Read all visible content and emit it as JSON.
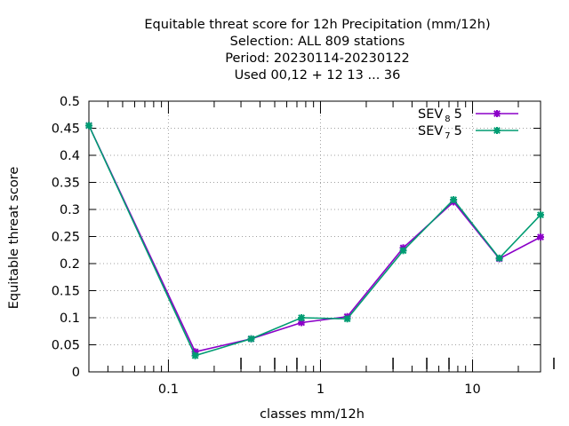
{
  "chart_data": {
    "type": "line",
    "title_lines": [
      "Equitable threat score  for 12h Precipitation (mm/12h)",
      "Selection: ALL    809 stations",
      "Period: 20230114-20230122",
      "Used  00,12  + 12 13 ... 36"
    ],
    "xlabel": "classes mm/12h",
    "ylabel": "Equitable threat score",
    "x_scale": "log",
    "xlim": [
      0.03,
      28
    ],
    "ylim": [
      0,
      0.5
    ],
    "x_ticks": [
      0.1,
      1,
      10
    ],
    "x_tick_labels": [
      "0.1",
      "1",
      "10"
    ],
    "y_ticks": [
      0,
      0.05,
      0.1,
      0.15,
      0.2,
      0.25,
      0.3,
      0.35,
      0.4,
      0.45,
      0.5
    ],
    "y_tick_labels": [
      "0",
      "0.05",
      "0.1",
      "0.15",
      "0.2",
      "0.25",
      "0.3",
      "0.35",
      "0.4",
      "0.45",
      "0.5"
    ],
    "grid": true,
    "legend_position": "top-right",
    "series": [
      {
        "name_main": "SEV",
        "name_sub": "8",
        "name_suffix": "5",
        "color": "#8b00c8",
        "x": [
          0.03,
          0.15,
          0.35,
          0.75,
          1.5,
          3.5,
          7.5,
          15,
          28
        ],
        "values": [
          0.455,
          0.037,
          0.061,
          0.091,
          0.102,
          0.229,
          0.314,
          0.209,
          0.249
        ]
      },
      {
        "name_main": "SEV",
        "name_sub": "7",
        "name_suffix": "5",
        "color": "#009c72",
        "x": [
          0.03,
          0.15,
          0.35,
          0.75,
          1.5,
          3.5,
          7.5,
          15,
          28
        ],
        "values": [
          0.455,
          0.03,
          0.061,
          0.1,
          0.098,
          0.224,
          0.318,
          0.21,
          0.29
        ]
      }
    ]
  }
}
